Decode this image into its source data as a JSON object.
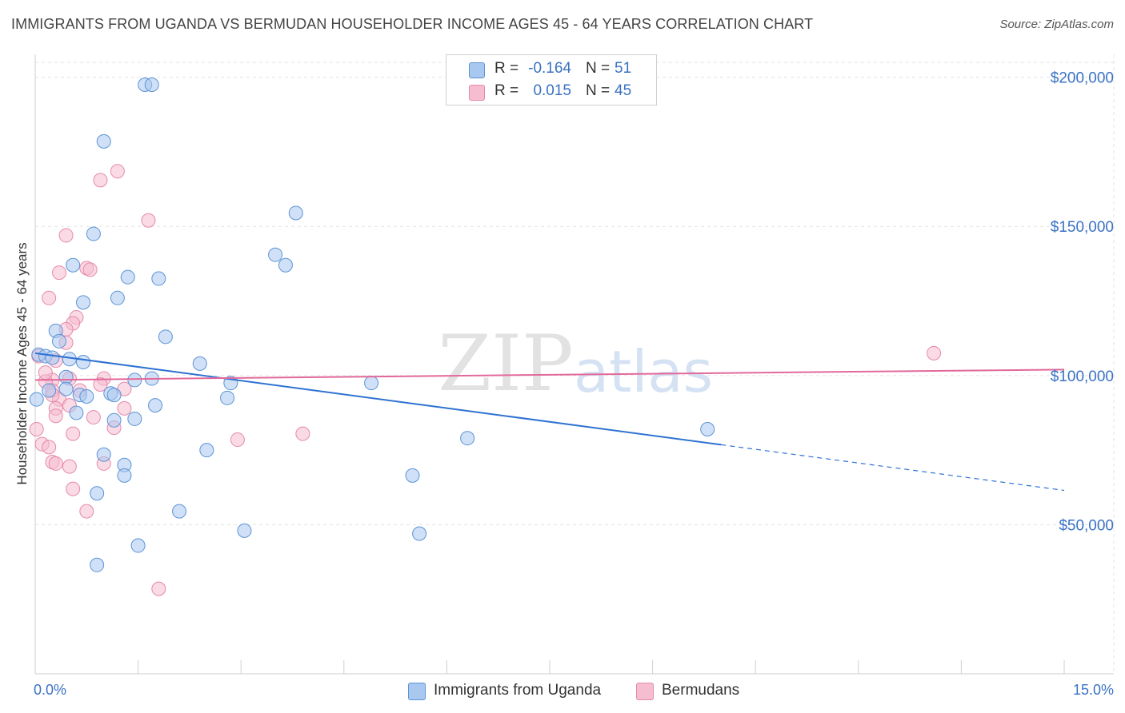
{
  "title": "IMMIGRANTS FROM UGANDA VS BERMUDAN HOUSEHOLDER INCOME AGES 45 - 64 YEARS CORRELATION CHART",
  "source": "Source: ZipAtlas.com",
  "watermark": {
    "zip": "ZIP",
    "atlas": "atlas"
  },
  "legend": {
    "r_label": "R =",
    "n_label": "N =",
    "series": [
      {
        "name": "Immigrants from Uganda",
        "r": "-0.164",
        "n": "51"
      },
      {
        "name": "Bermudans",
        "r": "0.015",
        "n": "45"
      }
    ]
  },
  "colors": {
    "uganda_fill": "#a9c8f0",
    "uganda_stroke": "#5b93d6",
    "uganda_line": "#2f72d2",
    "bermudan_fill": "#f6bcd0",
    "bermudan_stroke": "#e58aab",
    "bermudan_line": "#e2699a",
    "tick": "#3a72c4"
  },
  "chart_data": {
    "type": "scatter",
    "title": "IMMIGRANTS FROM UGANDA VS BERMUDAN HOUSEHOLDER INCOME AGES 45 - 64 YEARS CORRELATION CHART",
    "xlabel": "",
    "ylabel": "Householder Income Ages 45 - 64 years",
    "xlim": [
      0,
      15
    ],
    "ylim": [
      0,
      205000
    ],
    "x_tick_labels": [
      "0.0%",
      "15.0%"
    ],
    "y_ticks": [
      50000,
      100000,
      150000,
      200000
    ],
    "y_tick_labels": [
      "$50,000",
      "$100,000",
      "$150,000",
      "$200,000"
    ],
    "grid": true,
    "legend_position": "top-center",
    "series": [
      {
        "name": "Immigrants from Uganda",
        "trend": {
          "x0": 0.0,
          "y0": 107500,
          "x1": 10.0,
          "y1": 76800,
          "dashed_to_x": 15.0,
          "dashed_to_y": 61500
        },
        "points": [
          [
            1.6,
            197500
          ],
          [
            1.7,
            197500
          ],
          [
            1.0,
            178500
          ],
          [
            3.8,
            154500
          ],
          [
            0.85,
            147500
          ],
          [
            3.5,
            140500
          ],
          [
            3.65,
            137000
          ],
          [
            0.55,
            137000
          ],
          [
            1.35,
            133000
          ],
          [
            1.8,
            132500
          ],
          [
            1.2,
            126000
          ],
          [
            0.7,
            124500
          ],
          [
            0.3,
            115000
          ],
          [
            1.9,
            113000
          ],
          [
            0.35,
            111500
          ],
          [
            0.05,
            107000
          ],
          [
            0.15,
            106500
          ],
          [
            0.25,
            106000
          ],
          [
            0.5,
            105500
          ],
          [
            0.7,
            104500
          ],
          [
            2.4,
            104000
          ],
          [
            0.45,
            99500
          ],
          [
            1.45,
            98500
          ],
          [
            1.7,
            99000
          ],
          [
            2.85,
            97500
          ],
          [
            4.9,
            97500
          ],
          [
            0.2,
            95000
          ],
          [
            0.45,
            95500
          ],
          [
            0.65,
            93500
          ],
          [
            0.75,
            93000
          ],
          [
            1.1,
            94000
          ],
          [
            1.15,
            93500
          ],
          [
            0.02,
            92000
          ],
          [
            2.8,
            92500
          ],
          [
            1.75,
            90000
          ],
          [
            0.6,
            87500
          ],
          [
            1.15,
            85000
          ],
          [
            1.45,
            85500
          ],
          [
            9.8,
            82000
          ],
          [
            6.3,
            79000
          ],
          [
            1.0,
            73500
          ],
          [
            2.5,
            75000
          ],
          [
            1.3,
            70000
          ],
          [
            1.3,
            66500
          ],
          [
            5.5,
            66500
          ],
          [
            0.9,
            60500
          ],
          [
            2.1,
            54500
          ],
          [
            3.05,
            48000
          ],
          [
            5.6,
            47000
          ],
          [
            1.5,
            43000
          ],
          [
            0.9,
            36500
          ]
        ]
      },
      {
        "name": "Bermudans",
        "trend": {
          "x0": 0.0,
          "y0": 98500,
          "x1": 15.0,
          "y1": 102000
        },
        "points": [
          [
            1.2,
            168500
          ],
          [
            0.95,
            165500
          ],
          [
            1.65,
            152000
          ],
          [
            0.45,
            147000
          ],
          [
            0.75,
            136000
          ],
          [
            0.8,
            135500
          ],
          [
            0.35,
            134500
          ],
          [
            0.2,
            126000
          ],
          [
            0.6,
            119500
          ],
          [
            0.55,
            117500
          ],
          [
            0.45,
            115500
          ],
          [
            0.45,
            111000
          ],
          [
            0.05,
            106500
          ],
          [
            0.3,
            105000
          ],
          [
            0.25,
            98500
          ],
          [
            0.5,
            99000
          ],
          [
            1.0,
            99000
          ],
          [
            0.15,
            98000
          ],
          [
            0.95,
            97000
          ],
          [
            0.25,
            95000
          ],
          [
            1.3,
            95500
          ],
          [
            0.35,
            92000
          ],
          [
            0.5,
            90000
          ],
          [
            0.3,
            89000
          ],
          [
            1.3,
            89000
          ],
          [
            0.3,
            86500
          ],
          [
            0.85,
            86000
          ],
          [
            0.02,
            82000
          ],
          [
            1.15,
            82500
          ],
          [
            0.55,
            80500
          ],
          [
            3.9,
            80500
          ],
          [
            2.95,
            78500
          ],
          [
            0.1,
            77000
          ],
          [
            0.2,
            76000
          ],
          [
            0.25,
            71000
          ],
          [
            0.3,
            70500
          ],
          [
            0.5,
            69500
          ],
          [
            1.0,
            70500
          ],
          [
            0.55,
            62000
          ],
          [
            0.75,
            54500
          ],
          [
            1.8,
            28500
          ],
          [
            13.1,
            107500
          ],
          [
            0.25,
            93500
          ],
          [
            0.15,
            101000
          ],
          [
            0.65,
            95000
          ]
        ]
      }
    ]
  }
}
